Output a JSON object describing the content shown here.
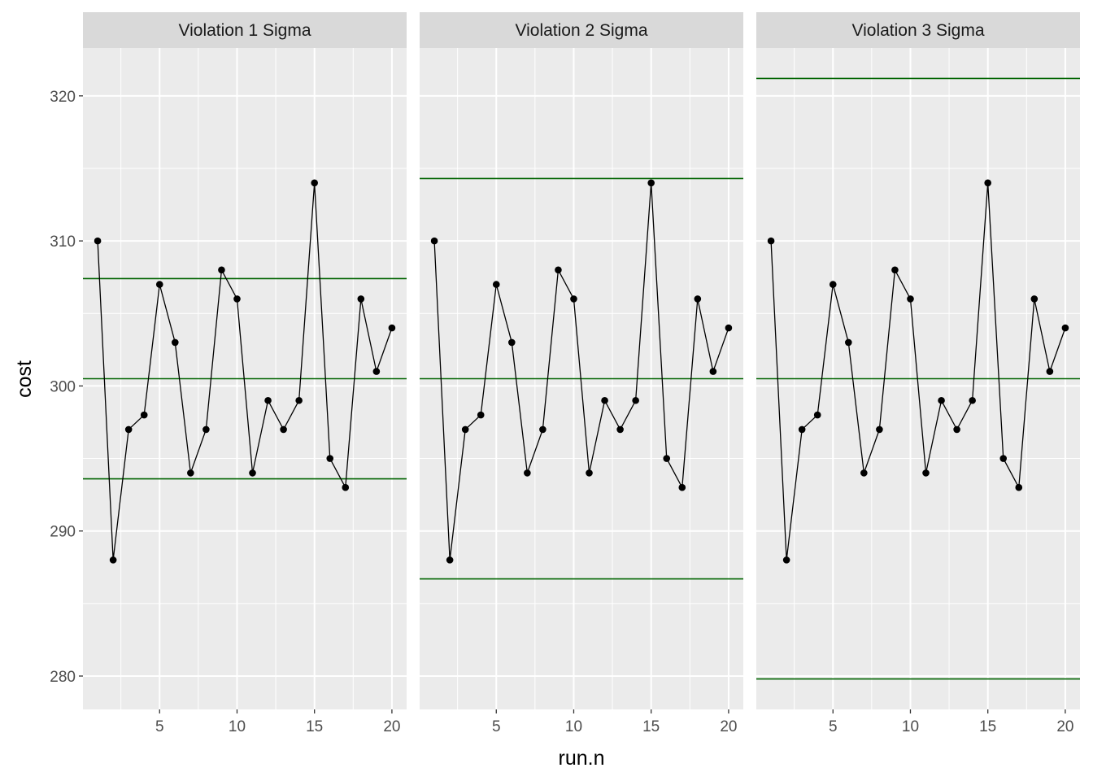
{
  "chart_data": {
    "type": "line",
    "xlabel": "run.n",
    "ylabel": "cost",
    "xlim": [
      0.05,
      20.95
    ],
    "ylim": [
      277.7,
      323.3
    ],
    "x_ticks": [
      5,
      10,
      15,
      20
    ],
    "x_minor_ticks": [
      2.5,
      7.5,
      12.5,
      17.5
    ],
    "y_ticks": [
      280,
      290,
      300,
      310,
      320
    ],
    "y_minor_ticks": [
      285,
      295,
      305,
      315
    ],
    "grid": true,
    "colors": {
      "panel_bg": "#ebebeb",
      "strip_bg": "#d9d9d9",
      "grid": "#ffffff",
      "series": "#000000",
      "control_lines": "#006400"
    },
    "series": [
      {
        "x": [
          1,
          2,
          3,
          4,
          5,
          6,
          7,
          8,
          9,
          10,
          11,
          12,
          13,
          14,
          15,
          16,
          17,
          18,
          19,
          20
        ],
        "values": [
          310,
          288,
          297,
          298,
          307,
          303,
          294,
          297,
          308,
          306,
          294,
          299,
          297,
          299,
          314,
          295,
          293,
          306,
          301,
          304
        ]
      }
    ],
    "facets": [
      {
        "label": "Violation 1 Sigma",
        "hlines": [
          307.4,
          300.5,
          293.6
        ]
      },
      {
        "label": "Violation 2 Sigma",
        "hlines": [
          314.3,
          300.5,
          286.7
        ]
      },
      {
        "label": "Violation 3 Sigma",
        "hlines": [
          321.2,
          300.5,
          279.8
        ]
      }
    ]
  }
}
